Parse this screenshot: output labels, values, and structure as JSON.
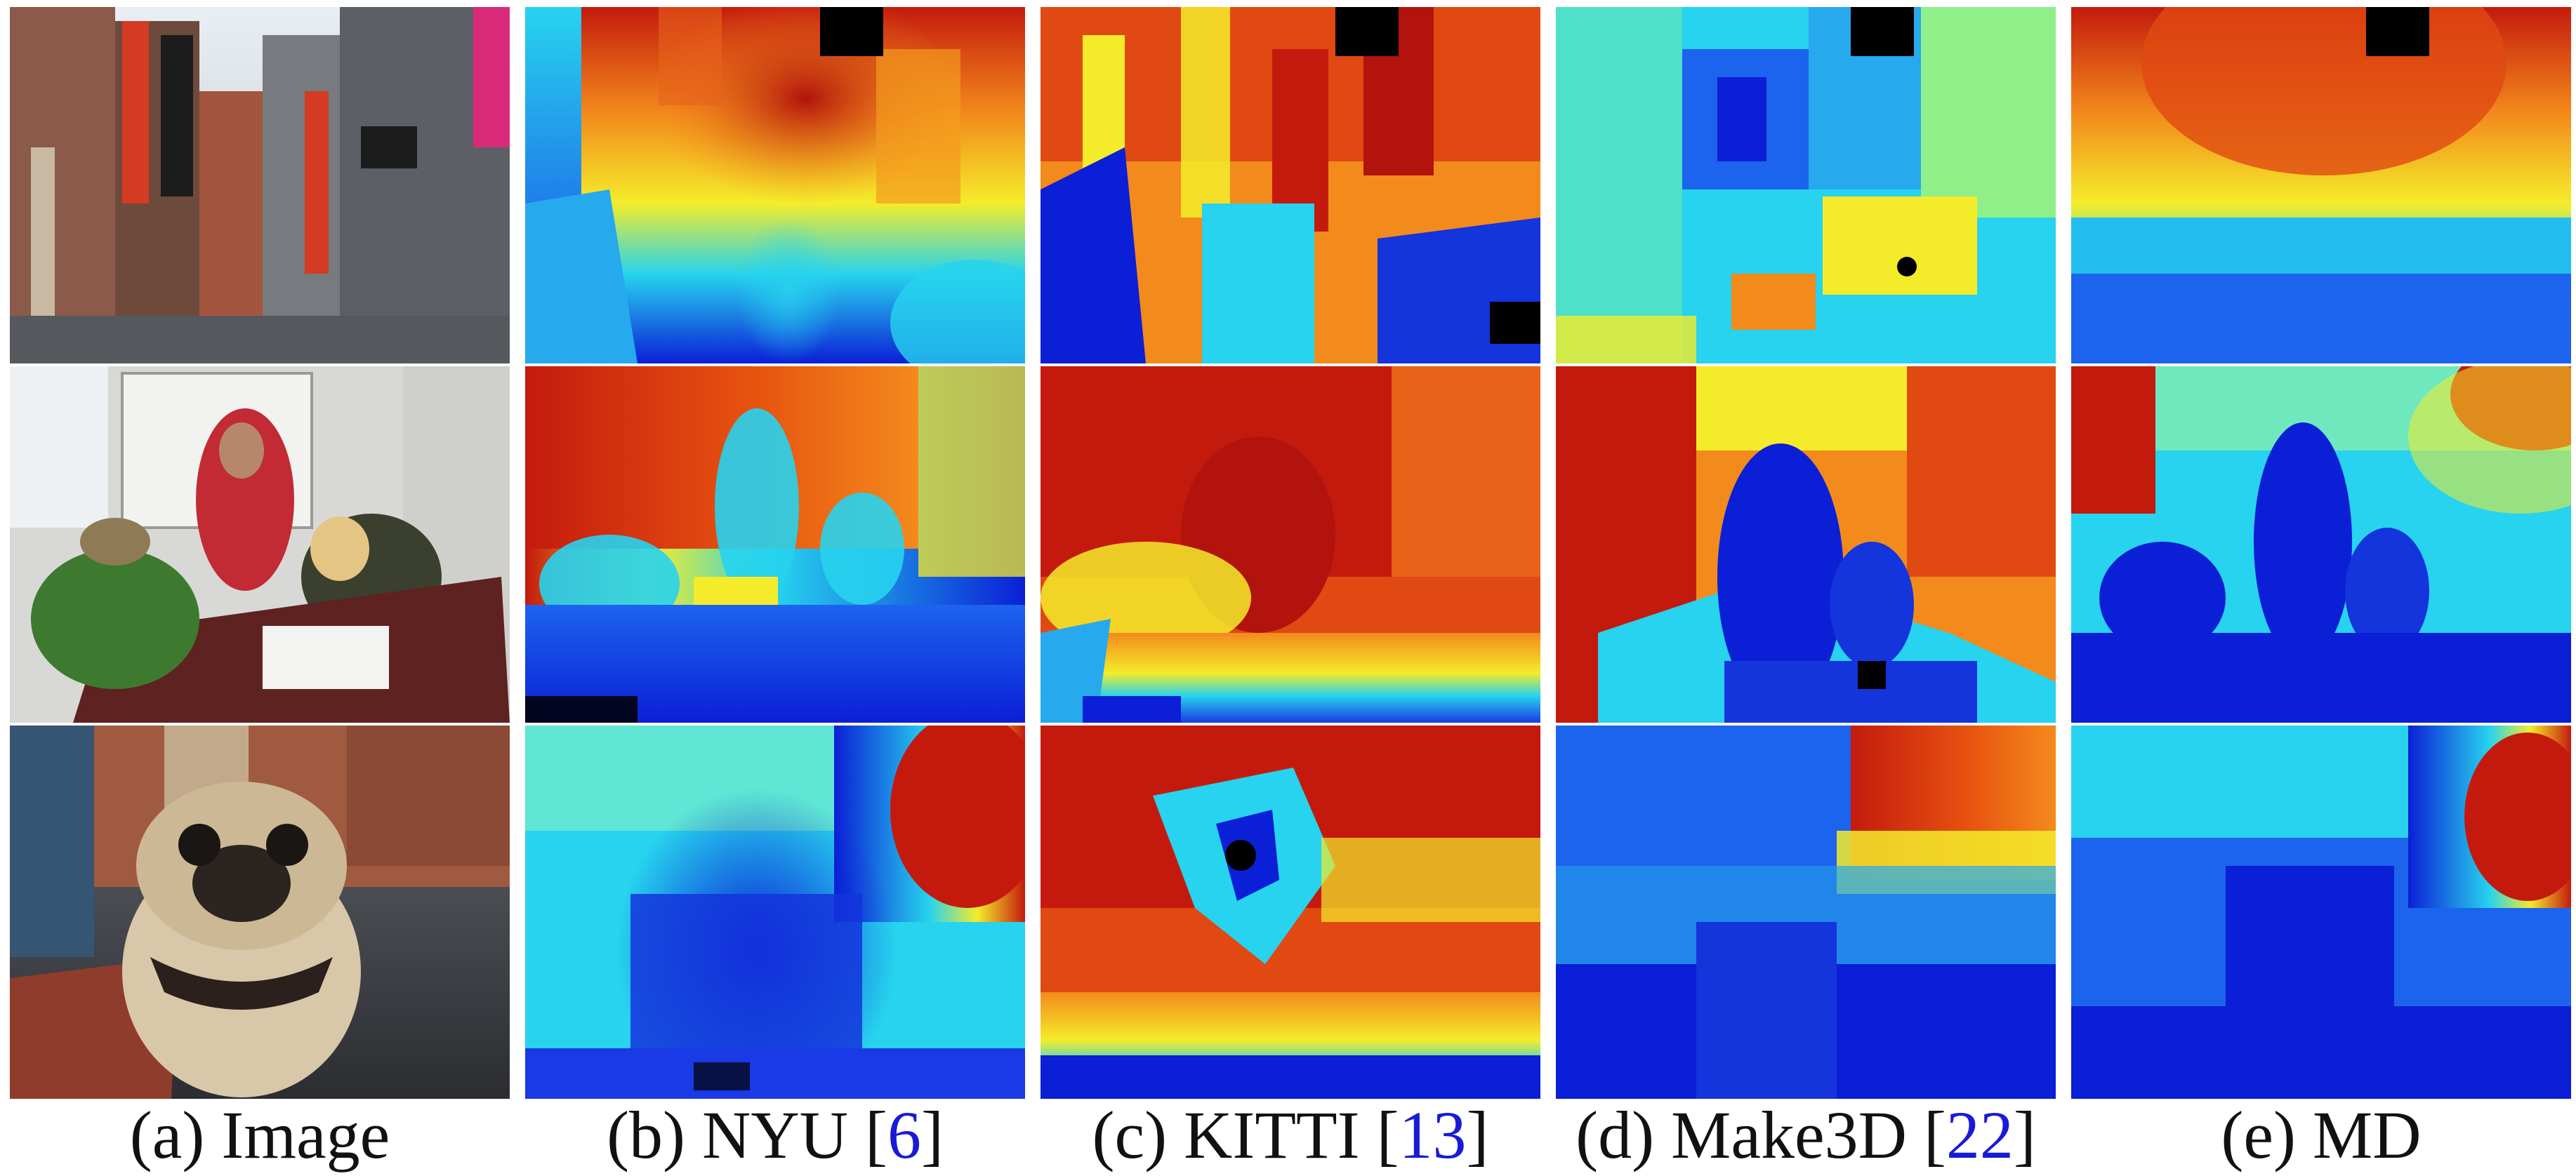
{
  "figure": {
    "columns": [
      {
        "id": "image",
        "caption_prefix": "(a) Image",
        "ref": "",
        "caption_suffix": ""
      },
      {
        "id": "nyu",
        "caption_prefix": "(b) NYU [",
        "ref": "6",
        "caption_suffix": "]"
      },
      {
        "id": "kitti",
        "caption_prefix": "(c) KITTI [",
        "ref": "13",
        "caption_suffix": "]"
      },
      {
        "id": "make3d",
        "caption_prefix": "(d) Make3D [",
        "ref": "22",
        "caption_suffix": "]"
      },
      {
        "id": "md",
        "caption_prefix": "(e) MD",
        "ref": "",
        "caption_suffix": ""
      }
    ],
    "rows": [
      "street-scene",
      "office-scene",
      "pug-dog-scene"
    ],
    "colors": {
      "near_blue": "#0b1fd6",
      "mid_cyan": "#27d3ee",
      "mid_yellow": "#f4ec2a",
      "far_orange": "#f38a1c",
      "far_red": "#c41a0e",
      "sky_black": "#000000",
      "citation_blue": "#1a1ad6"
    }
  }
}
